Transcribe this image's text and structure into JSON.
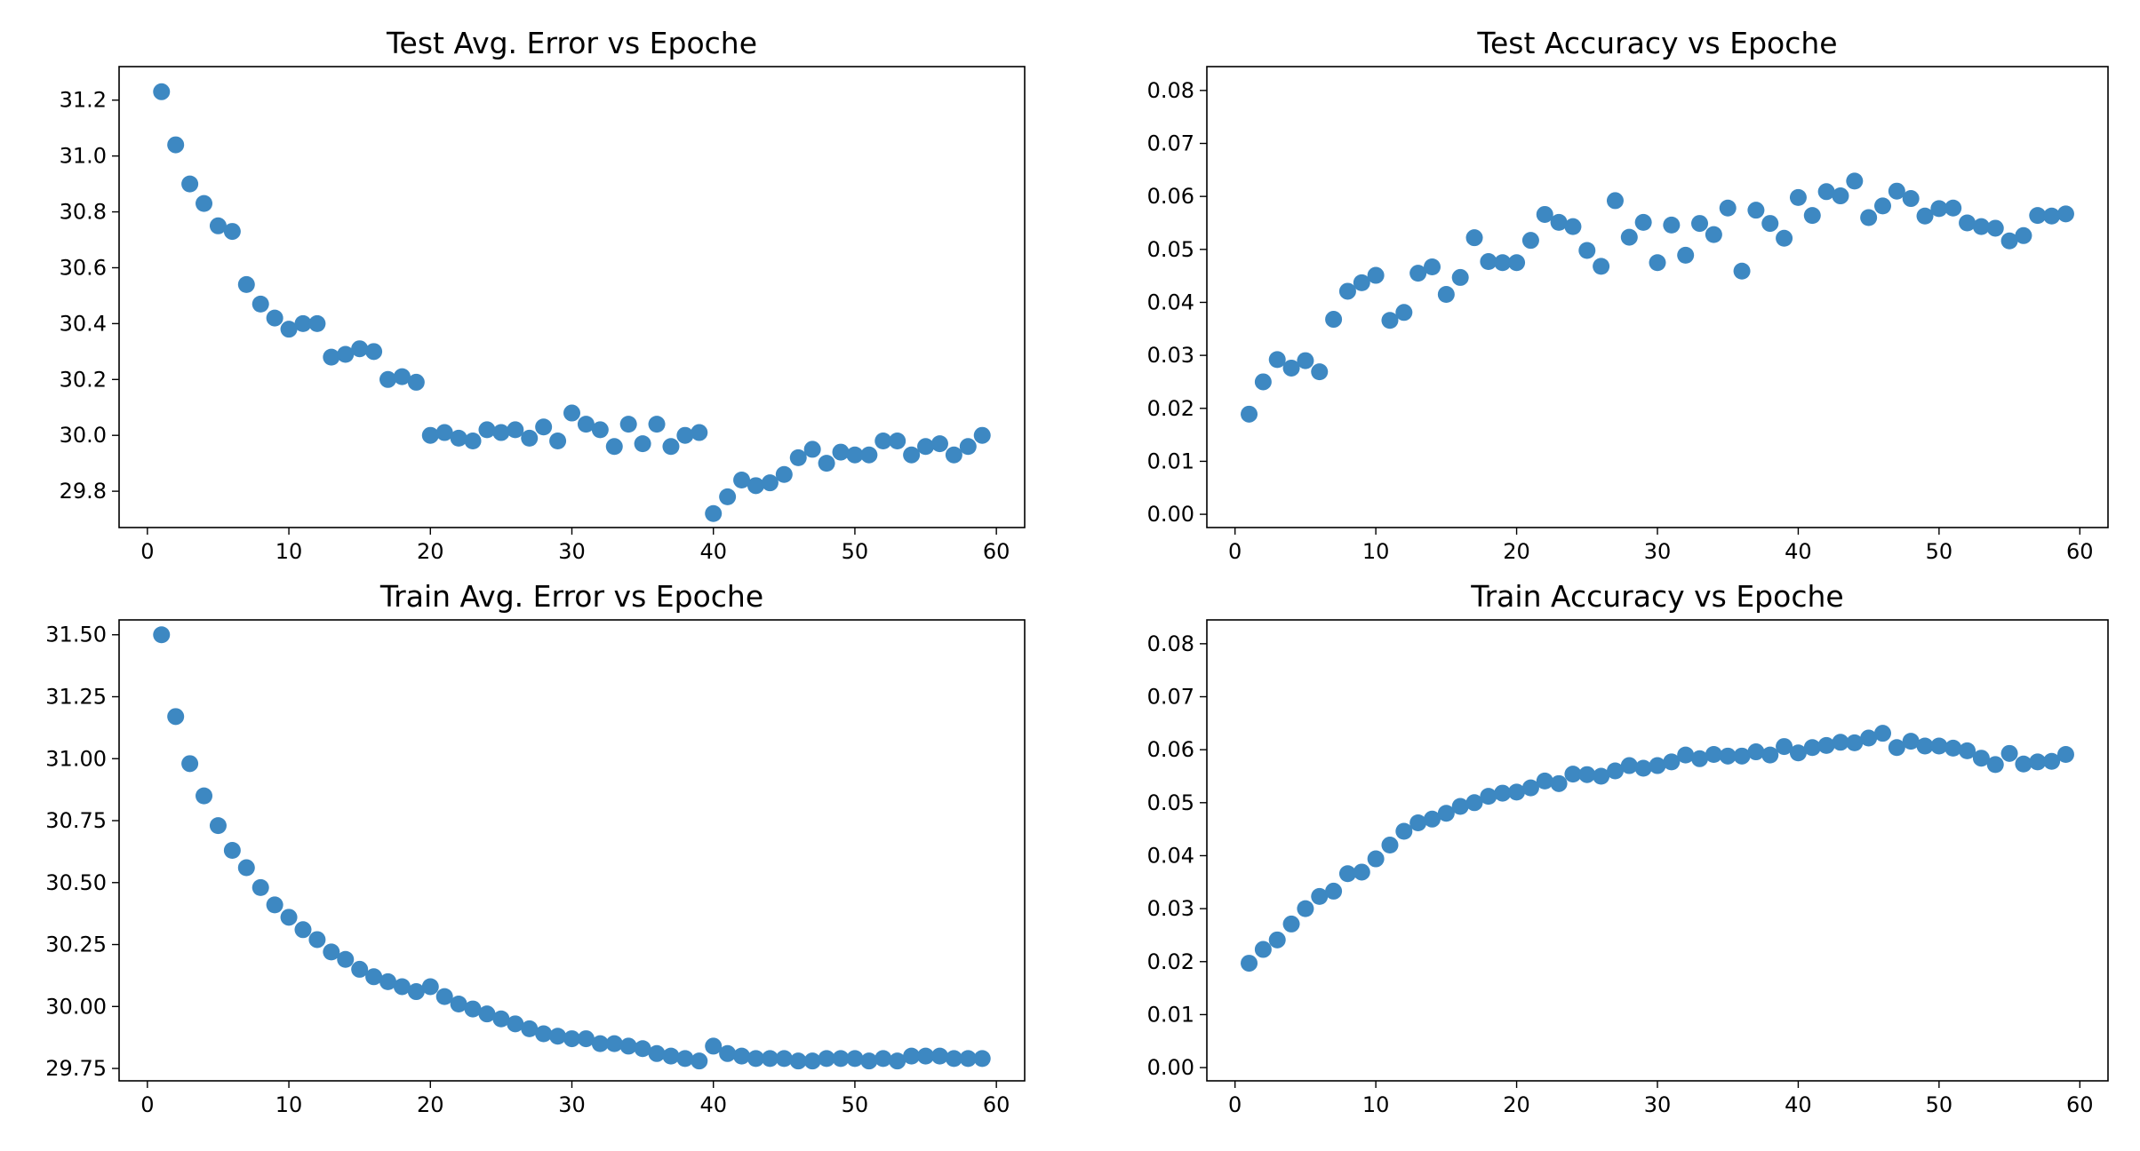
{
  "marker_color": "#3d88c2",
  "chart_data": [
    {
      "type": "scatter",
      "title": "Test Avg. Error vs Epoche",
      "xlabel": "",
      "ylabel": "",
      "xlim": [
        -2,
        62
      ],
      "ylim": [
        29.67,
        31.32
      ],
      "xticks": [
        0,
        10,
        20,
        30,
        40,
        50,
        60
      ],
      "xtick_labels": [
        "0",
        "10",
        "20",
        "30",
        "40",
        "50",
        "60"
      ],
      "yticks": [
        29.8,
        30.0,
        30.2,
        30.4,
        30.6,
        30.8,
        31.0,
        31.2
      ],
      "ytick_labels": [
        "29.8",
        "30.0",
        "30.2",
        "30.4",
        "30.6",
        "30.8",
        "31.0",
        "31.2"
      ],
      "grid": false,
      "series": [
        {
          "x": [
            1,
            2,
            3,
            4,
            5,
            6,
            7,
            8,
            9,
            10,
            11,
            12,
            13,
            14,
            15,
            16,
            17,
            18,
            19,
            20,
            21,
            22,
            23,
            24,
            25,
            26,
            27,
            28,
            29,
            30,
            31,
            32,
            33,
            34,
            35,
            36,
            37,
            38,
            39,
            40,
            41,
            42,
            43,
            44,
            45,
            46,
            47,
            48,
            49,
            50,
            51,
            52,
            53,
            54,
            55,
            56,
            57,
            58,
            59
          ],
          "y": [
            31.23,
            31.04,
            30.9,
            30.83,
            30.75,
            30.73,
            30.54,
            30.47,
            30.42,
            30.38,
            30.4,
            30.4,
            30.28,
            30.29,
            30.31,
            30.3,
            30.2,
            30.21,
            30.19,
            30.0,
            30.01,
            29.99,
            29.98,
            30.02,
            30.01,
            30.02,
            29.99,
            30.03,
            29.98,
            30.08,
            30.04,
            30.02,
            29.96,
            30.04,
            29.97,
            30.04,
            29.96,
            30.0,
            30.01,
            29.72,
            29.78,
            29.84,
            29.82,
            29.83,
            29.86,
            29.92,
            29.95,
            29.9,
            29.94,
            29.93,
            29.93,
            29.98,
            29.98,
            29.93,
            29.96,
            29.97,
            29.93,
            29.96,
            30.0
          ]
        }
      ]
    },
    {
      "type": "scatter",
      "title": "Test Accuracy vs Epoche",
      "xlabel": "",
      "ylabel": "",
      "xlim": [
        -2,
        62
      ],
      "ylim": [
        -0.0025,
        0.0845
      ],
      "xticks": [
        0,
        10,
        20,
        30,
        40,
        50,
        60
      ],
      "xtick_labels": [
        "0",
        "10",
        "20",
        "30",
        "40",
        "50",
        "60"
      ],
      "yticks": [
        0.0,
        0.01,
        0.02,
        0.03,
        0.04,
        0.05,
        0.06,
        0.07,
        0.08
      ],
      "ytick_labels": [
        "0.00",
        "0.01",
        "0.02",
        "0.03",
        "0.04",
        "0.05",
        "0.06",
        "0.07",
        "0.08"
      ],
      "grid": false,
      "series": [
        {
          "x": [
            1,
            2,
            3,
            4,
            5,
            6,
            7,
            8,
            9,
            10,
            11,
            12,
            13,
            14,
            15,
            16,
            17,
            18,
            19,
            20,
            21,
            22,
            23,
            24,
            25,
            26,
            27,
            28,
            29,
            30,
            31,
            32,
            33,
            34,
            35,
            36,
            37,
            38,
            39,
            40,
            41,
            42,
            43,
            44,
            45,
            46,
            47,
            48,
            49,
            50,
            51,
            52,
            53,
            54,
            55,
            56,
            57,
            58,
            59
          ],
          "y": [
            0.0189,
            0.025,
            0.0292,
            0.0276,
            0.029,
            0.0269,
            0.0368,
            0.0421,
            0.0437,
            0.0451,
            0.0366,
            0.0381,
            0.0455,
            0.0467,
            0.0415,
            0.0447,
            0.0522,
            0.0477,
            0.0475,
            0.0475,
            0.0517,
            0.0566,
            0.0551,
            0.0543,
            0.0498,
            0.0468,
            0.0592,
            0.0523,
            0.0551,
            0.0475,
            0.0546,
            0.0489,
            0.0549,
            0.0528,
            0.0578,
            0.0459,
            0.0574,
            0.0549,
            0.0521,
            0.0598,
            0.0564,
            0.0609,
            0.0601,
            0.0629,
            0.056,
            0.0582,
            0.061,
            0.0596,
            0.0563,
            0.0577,
            0.0578,
            0.055,
            0.0543,
            0.054,
            0.0516,
            0.0526,
            0.0564,
            0.0563,
            0.0567
          ]
        }
      ]
    },
    {
      "type": "scatter",
      "title": "Train Avg. Error vs Epoche",
      "xlabel": "",
      "ylabel": "",
      "xlim": [
        -2,
        62
      ],
      "ylim": [
        29.7,
        31.56
      ],
      "xticks": [
        0,
        10,
        20,
        30,
        40,
        50,
        60
      ],
      "xtick_labels": [
        "0",
        "10",
        "20",
        "30",
        "40",
        "50",
        "60"
      ],
      "yticks": [
        29.75,
        30.0,
        30.25,
        30.5,
        30.75,
        31.0,
        31.25,
        31.5
      ],
      "ytick_labels": [
        "29.75",
        "30.00",
        "30.25",
        "30.50",
        "30.75",
        "31.00",
        "31.25",
        "31.50"
      ],
      "grid": false,
      "series": [
        {
          "x": [
            1,
            2,
            3,
            4,
            5,
            6,
            7,
            8,
            9,
            10,
            11,
            12,
            13,
            14,
            15,
            16,
            17,
            18,
            19,
            20,
            21,
            22,
            23,
            24,
            25,
            26,
            27,
            28,
            29,
            30,
            31,
            32,
            33,
            34,
            35,
            36,
            37,
            38,
            39,
            40,
            41,
            42,
            43,
            44,
            45,
            46,
            47,
            48,
            49,
            50,
            51,
            52,
            53,
            54,
            55,
            56,
            57,
            58,
            59
          ],
          "y": [
            31.5,
            31.17,
            30.98,
            30.85,
            30.73,
            30.63,
            30.56,
            30.48,
            30.41,
            30.36,
            30.31,
            30.27,
            30.22,
            30.19,
            30.15,
            30.12,
            30.1,
            30.08,
            30.06,
            30.08,
            30.04,
            30.01,
            29.99,
            29.97,
            29.95,
            29.93,
            29.91,
            29.89,
            29.88,
            29.87,
            29.87,
            29.85,
            29.85,
            29.84,
            29.83,
            29.81,
            29.8,
            29.79,
            29.78,
            29.84,
            29.81,
            29.8,
            29.79,
            29.79,
            29.79,
            29.78,
            29.78,
            29.79,
            29.79,
            29.79,
            29.78,
            29.79,
            29.78,
            29.8,
            29.8,
            29.8,
            29.79,
            29.79,
            29.79
          ]
        }
      ]
    },
    {
      "type": "scatter",
      "title": "Train Accuracy vs Epoche",
      "xlabel": "",
      "ylabel": "",
      "xlim": [
        -2,
        62
      ],
      "ylim": [
        -0.0025,
        0.0845
      ],
      "xticks": [
        0,
        10,
        20,
        30,
        40,
        50,
        60
      ],
      "xtick_labels": [
        "0",
        "10",
        "20",
        "30",
        "40",
        "50",
        "60"
      ],
      "yticks": [
        0.0,
        0.01,
        0.02,
        0.03,
        0.04,
        0.05,
        0.06,
        0.07,
        0.08
      ],
      "ytick_labels": [
        "0.00",
        "0.01",
        "0.02",
        "0.03",
        "0.04",
        "0.05",
        "0.06",
        "0.07",
        "0.08"
      ],
      "grid": false,
      "series": [
        {
          "x": [
            1,
            2,
            3,
            4,
            5,
            6,
            7,
            8,
            9,
            10,
            11,
            12,
            13,
            14,
            15,
            16,
            17,
            18,
            19,
            20,
            21,
            22,
            23,
            24,
            25,
            26,
            27,
            28,
            29,
            30,
            31,
            32,
            33,
            34,
            35,
            36,
            37,
            38,
            39,
            40,
            41,
            42,
            43,
            44,
            45,
            46,
            47,
            48,
            49,
            50,
            51,
            52,
            53,
            54,
            55,
            56,
            57,
            58,
            59
          ],
          "y": [
            0.0197,
            0.0223,
            0.0241,
            0.0271,
            0.03,
            0.0323,
            0.0333,
            0.0366,
            0.0369,
            0.0394,
            0.042,
            0.0446,
            0.0462,
            0.0469,
            0.048,
            0.0493,
            0.05,
            0.0512,
            0.0518,
            0.052,
            0.0528,
            0.0541,
            0.0536,
            0.0554,
            0.0553,
            0.055,
            0.056,
            0.057,
            0.0565,
            0.057,
            0.0577,
            0.059,
            0.0583,
            0.0591,
            0.0588,
            0.0588,
            0.0596,
            0.059,
            0.0606,
            0.0594,
            0.0604,
            0.0608,
            0.0614,
            0.0613,
            0.0622,
            0.0631,
            0.0604,
            0.0616,
            0.0607,
            0.0607,
            0.0603,
            0.0598,
            0.0584,
            0.0572,
            0.0593,
            0.0573,
            0.0577,
            0.0578,
            0.0591
          ]
        }
      ]
    }
  ]
}
